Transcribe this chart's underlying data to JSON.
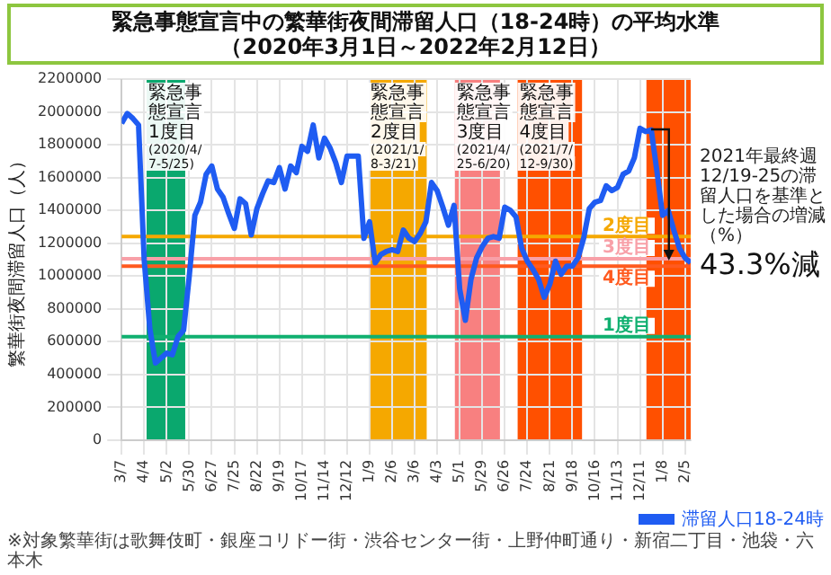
{
  "chart_data": {
    "type": "line",
    "title": "緊急事態宣言中の繁華街夜間滞留人口（18-24時）の平均水準",
    "subtitle": "（2020年3月1日～2022年2月12日）",
    "ylabel": "繁華街夜間滞留人口（人）",
    "x": [
      "2020-03-07",
      "2020-03-14",
      "2020-03-21",
      "2020-03-28",
      "2020-04-04",
      "2020-04-11",
      "2020-04-18",
      "2020-04-25",
      "2020-05-02",
      "2020-05-09",
      "2020-05-16",
      "2020-05-23",
      "2020-05-30",
      "2020-06-06",
      "2020-06-13",
      "2020-06-20",
      "2020-06-27",
      "2020-07-04",
      "2020-07-11",
      "2020-07-18",
      "2020-07-25",
      "2020-08-01",
      "2020-08-08",
      "2020-08-15",
      "2020-08-22",
      "2020-08-29",
      "2020-09-05",
      "2020-09-12",
      "2020-09-19",
      "2020-09-26",
      "2020-10-03",
      "2020-10-10",
      "2020-10-17",
      "2020-10-24",
      "2020-10-31",
      "2020-11-07",
      "2020-11-14",
      "2020-11-21",
      "2020-11-28",
      "2020-12-05",
      "2020-12-12",
      "2020-12-19",
      "2020-12-26",
      "2021-01-02",
      "2021-01-09",
      "2021-01-16",
      "2021-01-23",
      "2021-01-30",
      "2021-02-06",
      "2021-02-13",
      "2021-02-20",
      "2021-02-27",
      "2021-03-06",
      "2021-03-13",
      "2021-03-20",
      "2021-03-27",
      "2021-04-03",
      "2021-04-10",
      "2021-04-17",
      "2021-04-24",
      "2021-05-01",
      "2021-05-08",
      "2021-05-15",
      "2021-05-22",
      "2021-05-29",
      "2021-06-05",
      "2021-06-12",
      "2021-06-19",
      "2021-06-26",
      "2021-07-03",
      "2021-07-10",
      "2021-07-17",
      "2021-07-24",
      "2021-07-31",
      "2021-08-07",
      "2021-08-14",
      "2021-08-21",
      "2021-08-28",
      "2021-09-04",
      "2021-09-11",
      "2021-09-18",
      "2021-09-25",
      "2021-10-02",
      "2021-10-09",
      "2021-10-16",
      "2021-10-23",
      "2021-10-30",
      "2021-11-06",
      "2021-11-13",
      "2021-11-20",
      "2021-11-27",
      "2021-12-04",
      "2021-12-11",
      "2021-12-18",
      "2021-12-25",
      "2022-01-01",
      "2022-01-08",
      "2022-01-15",
      "2022-01-22",
      "2022-01-29",
      "2022-02-05",
      "2022-02-12"
    ],
    "series": [
      {
        "name": "滞留人口18-24時",
        "color": "#1f5cf2",
        "values": [
          1930000,
          1990000,
          1960000,
          1920000,
          1100000,
          680000,
          470000,
          500000,
          530000,
          520000,
          630000,
          670000,
          1000000,
          1370000,
          1450000,
          1620000,
          1670000,
          1530000,
          1480000,
          1380000,
          1290000,
          1470000,
          1440000,
          1250000,
          1410000,
          1500000,
          1580000,
          1570000,
          1660000,
          1530000,
          1670000,
          1630000,
          1790000,
          1760000,
          1920000,
          1720000,
          1840000,
          1780000,
          1690000,
          1570000,
          1730000,
          1730000,
          1730000,
          1230000,
          1330000,
          1080000,
          1130000,
          1150000,
          1160000,
          1150000,
          1280000,
          1230000,
          1210000,
          1260000,
          1330000,
          1570000,
          1520000,
          1420000,
          1310000,
          1430000,
          920000,
          730000,
          980000,
          1110000,
          1180000,
          1230000,
          1240000,
          1230000,
          1420000,
          1400000,
          1360000,
          1170000,
          1090000,
          1040000,
          980000,
          870000,
          950000,
          1090000,
          1010000,
          1060000,
          1060000,
          1110000,
          1230000,
          1410000,
          1450000,
          1460000,
          1550000,
          1520000,
          1540000,
          1620000,
          1640000,
          1720000,
          1900000,
          1880000,
          1890000,
          1640000,
          1370000,
          1400000,
          1280000,
          1170000,
          1110000,
          1080000
        ]
      }
    ],
    "xlim": [
      "2020-03-07",
      "2022-02-12"
    ],
    "xticks": [
      {
        "value": "2020-03-07",
        "label": "3/7"
      },
      {
        "value": "2020-04-04",
        "label": "4/4"
      },
      {
        "value": "2020-05-02",
        "label": "5/2"
      },
      {
        "value": "2020-05-30",
        "label": "5/30"
      },
      {
        "value": "2020-06-27",
        "label": "6/27"
      },
      {
        "value": "2020-07-25",
        "label": "7/25"
      },
      {
        "value": "2020-08-22",
        "label": "8/22"
      },
      {
        "value": "2020-09-19",
        "label": "9/19"
      },
      {
        "value": "2020-10-17",
        "label": "10/17"
      },
      {
        "value": "2020-11-14",
        "label": "11/14"
      },
      {
        "value": "2020-12-12",
        "label": "12/12"
      },
      {
        "value": "2021-01-09",
        "label": "1/9"
      },
      {
        "value": "2021-02-06",
        "label": "2/6"
      },
      {
        "value": "2021-03-06",
        "label": "3/6"
      },
      {
        "value": "2021-04-03",
        "label": "4/3"
      },
      {
        "value": "2021-05-01",
        "label": "5/1"
      },
      {
        "value": "2021-05-29",
        "label": "5/29"
      },
      {
        "value": "2021-06-26",
        "label": "6/26"
      },
      {
        "value": "2021-07-24",
        "label": "7/24"
      },
      {
        "value": "2021-08-21",
        "label": "8/21"
      },
      {
        "value": "2021-09-18",
        "label": "9/18"
      },
      {
        "value": "2021-10-16",
        "label": "10/16"
      },
      {
        "value": "2021-11-13",
        "label": "11/13"
      },
      {
        "value": "2021-12-11",
        "label": "12/11"
      },
      {
        "value": "2022-01-08",
        "label": "1/8"
      },
      {
        "value": "2022-02-05",
        "label": "2/5"
      }
    ],
    "ylim": [
      0,
      2200000
    ],
    "yticks": [
      0,
      200000,
      400000,
      600000,
      800000,
      1000000,
      1200000,
      1400000,
      1600000,
      1800000,
      2000000,
      2200000
    ],
    "bands": [
      {
        "axis": "x",
        "from": "2020-04-07",
        "to": "2020-05-25",
        "label": "緊急事態宣言\n1度目\n(2020/4/7-5/25)",
        "color": "#0aa86e"
      },
      {
        "axis": "x",
        "from": "2021-01-08",
        "to": "2021-03-21",
        "label": "緊急事態宣言\n2度目\n(2021/1/8-3/21)",
        "color": "#f5a800"
      },
      {
        "axis": "x",
        "from": "2021-04-25",
        "to": "2021-06-20",
        "label": "緊急事態宣言\n3度目\n(2021/4/25-6/20)",
        "color": "#f88080"
      },
      {
        "axis": "x",
        "from": "2021-07-12",
        "to": "2021-09-30",
        "label": "緊急事態宣言\n4度目\n(2021/7/12-9/30)",
        "color": "#ff5000"
      },
      {
        "axis": "x",
        "from": "2021-12-19",
        "to": "2022-02-12",
        "color": "#ff5000"
      }
    ],
    "ref_lines": [
      {
        "axis": "y",
        "value": 630000,
        "label": "1度目",
        "color": "#10b070"
      },
      {
        "axis": "y",
        "value": 1240000,
        "label": "2度目",
        "color": "#f5a800"
      },
      {
        "axis": "y",
        "value": 1105000,
        "label": "3度目",
        "color": "#f8a0a8"
      },
      {
        "axis": "y",
        "value": 1060000,
        "label": "4度目",
        "color": "#ff5a1f"
      }
    ],
    "annotations": [
      "2021年最終週12/19-25の滞留人口を基準とした場合の増減（%）",
      {
        "text": "43.3%減",
        "x": "2021-12-25",
        "y": 1890000
      },
      "※対象繁華街は歌舞伎町・銀座コリドー街・渋谷センター街・上野仲町通り・新宿二丁目・池袋・六本木"
    ],
    "grid": true,
    "legend": "bottom"
  }
}
